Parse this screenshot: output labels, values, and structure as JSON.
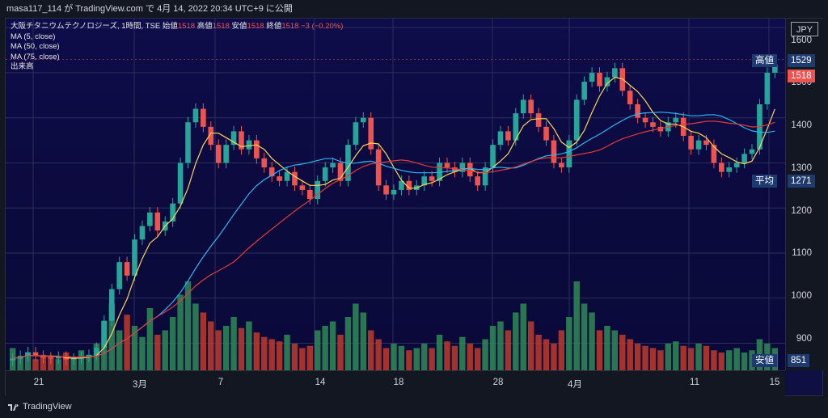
{
  "header": {
    "text": "masa117_114 が TradingView.com で 4月 14, 2022 20:34 UTC+9 に公開"
  },
  "legend": {
    "title": "大阪チタニウムテクノロジーズ, 1時間, TSE",
    "ohlc": [
      "始値",
      "1518",
      "高値",
      "1518",
      "安値",
      "1518",
      "終値",
      "1518",
      "−3 (−0.20%)"
    ],
    "ma": [
      "MA (5, close)",
      "MA (50, close)",
      "MA (75, close)"
    ],
    "volume": "出来高"
  },
  "axis": {
    "currency": "JPY",
    "ticks": [
      "1600",
      "1500",
      "1400",
      "1300",
      "1200",
      "1100",
      "1000",
      "900"
    ],
    "high_label": "高値",
    "high_value": "1529",
    "last_value": "1518",
    "avg_label": "平均",
    "avg_value": "1271",
    "low_label": "安値",
    "low_value": "851"
  },
  "xaxis": {
    "ticks": [
      "21",
      "3月",
      "7",
      "14",
      "18",
      "28",
      "4月",
      "11",
      "15"
    ]
  },
  "footer": {
    "brand": "TradingView"
  },
  "colors": {
    "up": "#26a69a",
    "down": "#ef5350",
    "ma5": "#ffd54f",
    "ma50": "#29b6f6",
    "ma75": "#e53935",
    "tag": "#1e3a6e"
  },
  "chart_data": {
    "type": "candlestick",
    "title": "大阪チタニウムテクノロジーズ, 1時間, TSE",
    "ylim": [
      840,
      1620
    ],
    "x_labels": [
      "21",
      "3月",
      "7",
      "14",
      "18",
      "28",
      "4月",
      "11",
      "15"
    ],
    "close": [
      866,
      872,
      880,
      872,
      868,
      866,
      870,
      864,
      866,
      870,
      874,
      890,
      950,
      1020,
      1080,
      1050,
      1130,
      1160,
      1190,
      1150,
      1170,
      1210,
      1300,
      1390,
      1420,
      1380,
      1340,
      1300,
      1340,
      1370,
      1330,
      1350,
      1310,
      1290,
      1270,
      1260,
      1280,
      1250,
      1240,
      1220,
      1260,
      1290,
      1300,
      1260,
      1340,
      1390,
      1400,
      1330,
      1250,
      1230,
      1240,
      1260,
      1240,
      1250,
      1270,
      1260,
      1300,
      1290,
      1280,
      1300,
      1270,
      1250,
      1290,
      1340,
      1370,
      1350,
      1410,
      1440,
      1410,
      1380,
      1350,
      1300,
      1290,
      1350,
      1440,
      1480,
      1500,
      1470,
      1490,
      1510,
      1460,
      1430,
      1400,
      1390,
      1380,
      1370,
      1390,
      1400,
      1360,
      1330,
      1350,
      1340,
      1300,
      1280,
      1290,
      1300,
      1320,
      1330,
      1430,
      1500,
      1518
    ],
    "volume": [
      10,
      6,
      8,
      5,
      7,
      6,
      5,
      8,
      6,
      9,
      7,
      12,
      22,
      30,
      18,
      25,
      20,
      15,
      28,
      16,
      18,
      24,
      34,
      40,
      30,
      26,
      22,
      18,
      20,
      24,
      19,
      22,
      17,
      15,
      14,
      13,
      16,
      12,
      10,
      11,
      18,
      20,
      22,
      16,
      24,
      30,
      26,
      18,
      14,
      10,
      12,
      11,
      9,
      10,
      12,
      10,
      16,
      13,
      11,
      15,
      12,
      10,
      14,
      20,
      22,
      18,
      26,
      30,
      22,
      16,
      14,
      12,
      18,
      24,
      40,
      30,
      26,
      18,
      20,
      18,
      16,
      14,
      12,
      11,
      10,
      9,
      12,
      13,
      11,
      10,
      12,
      11,
      9,
      8,
      9,
      10,
      8,
      9,
      14,
      12,
      10
    ],
    "high": 1529,
    "low": 851,
    "avg": 1271,
    "last": 1518
  }
}
